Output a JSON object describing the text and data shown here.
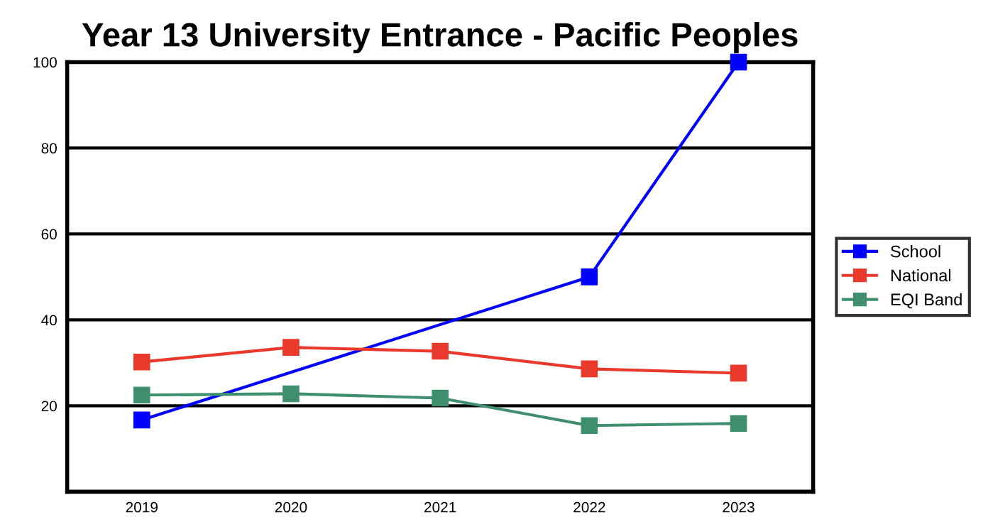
{
  "chart_data": {
    "type": "line",
    "title": "Year 13 University Entrance - Pacific Peoples",
    "categories": [
      "2019",
      "2020",
      "2021",
      "2022",
      "2023"
    ],
    "series": [
      {
        "name": "School",
        "color": "#0000ff",
        "values": [
          16.7,
          null,
          null,
          50,
          100
        ]
      },
      {
        "name": "National",
        "color": "#e8392c",
        "values": [
          30.2,
          33.6,
          32.7,
          28.6,
          27.6
        ]
      },
      {
        "name": "EQI Band",
        "color": "#3f8f6e",
        "values": [
          22.5,
          22.8,
          21.8,
          15.4,
          15.9
        ]
      }
    ],
    "ylim": [
      0,
      100
    ],
    "yticks": [
      20,
      40,
      60,
      80,
      100
    ],
    "grid": "y",
    "legend": "right",
    "marker": "square",
    "line_style": "solid"
  }
}
